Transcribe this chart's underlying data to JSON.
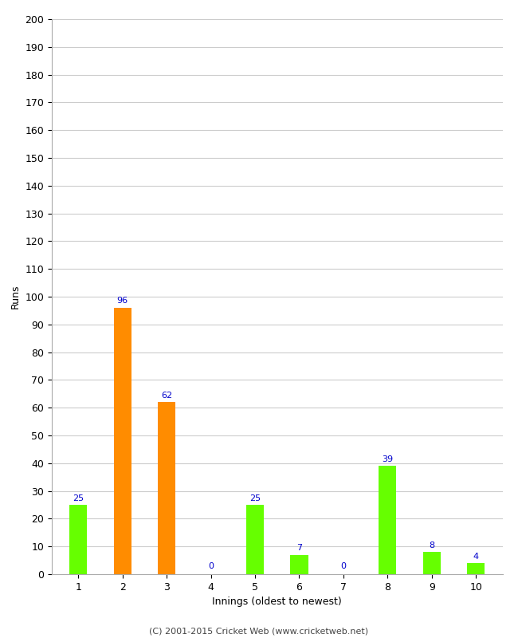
{
  "categories": [
    "1",
    "2",
    "3",
    "4",
    "5",
    "6",
    "7",
    "8",
    "9",
    "10"
  ],
  "values": [
    25,
    96,
    62,
    0,
    25,
    7,
    0,
    39,
    8,
    4
  ],
  "bar_colors": [
    "#66ff00",
    "#ff8c00",
    "#ff8c00",
    "#66ff00",
    "#66ff00",
    "#66ff00",
    "#66ff00",
    "#66ff00",
    "#66ff00",
    "#66ff00"
  ],
  "xlabel": "Innings (oldest to newest)",
  "ylabel": "Runs",
  "ylim": [
    0,
    200
  ],
  "yticks": [
    0,
    10,
    20,
    30,
    40,
    50,
    60,
    70,
    80,
    90,
    100,
    110,
    120,
    130,
    140,
    150,
    160,
    170,
    180,
    190,
    200
  ],
  "footer": "(C) 2001-2015 Cricket Web (www.cricketweb.net)",
  "label_color": "#0000cc",
  "background_color": "#ffffff",
  "grid_color": "#cccccc",
  "bar_width": 0.4
}
